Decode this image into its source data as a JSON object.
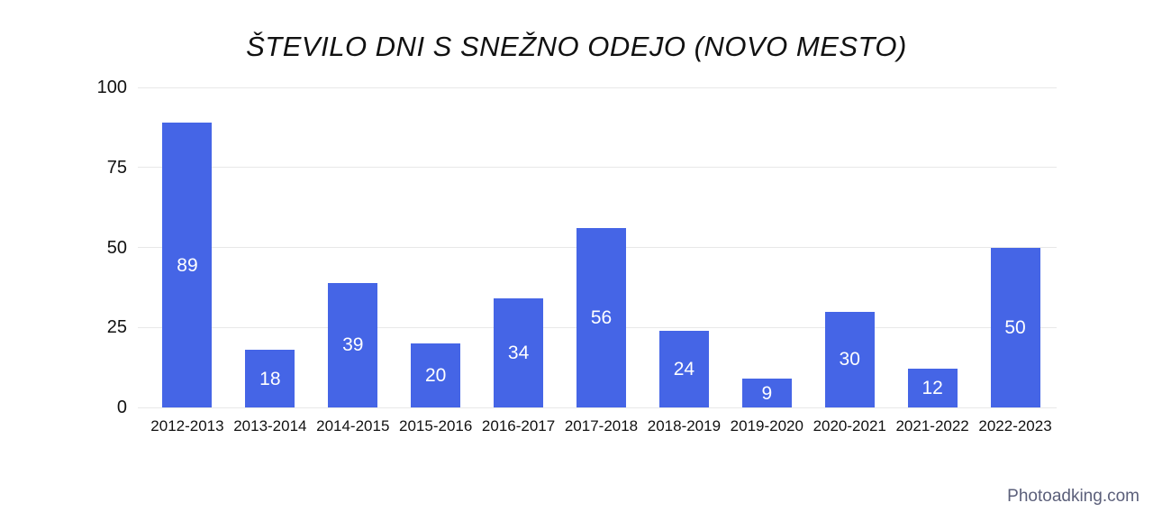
{
  "chart_data": {
    "type": "bar",
    "title": "ŠTEVILO DNI S SNEŽNO ODEJO (NOVO MESTO)",
    "categories": [
      "2012-2013",
      "2013-2014",
      "2014-2015",
      "2015-2016",
      "2016-2017",
      "2017-2018",
      "2018-2019",
      "2019-2020",
      "2020-2021",
      "2021-2022",
      "2022-2023"
    ],
    "values": [
      89,
      18,
      39,
      20,
      34,
      56,
      24,
      9,
      30,
      12,
      50
    ],
    "xlabel": "",
    "ylabel": "",
    "ylim": [
      0,
      100
    ],
    "yticks": [
      0,
      25,
      50,
      75,
      100
    ],
    "grid": true,
    "legend": "none",
    "value_labels": "inside-center",
    "colors": {
      "bar": "#4565e6",
      "gridline": "#e8e8e8",
      "value_label": "#ffffff",
      "axis_text": "#111111",
      "background": "#ffffff"
    }
  },
  "watermark": {
    "text": "Photoadking.com",
    "color": "#5b5f7a"
  }
}
